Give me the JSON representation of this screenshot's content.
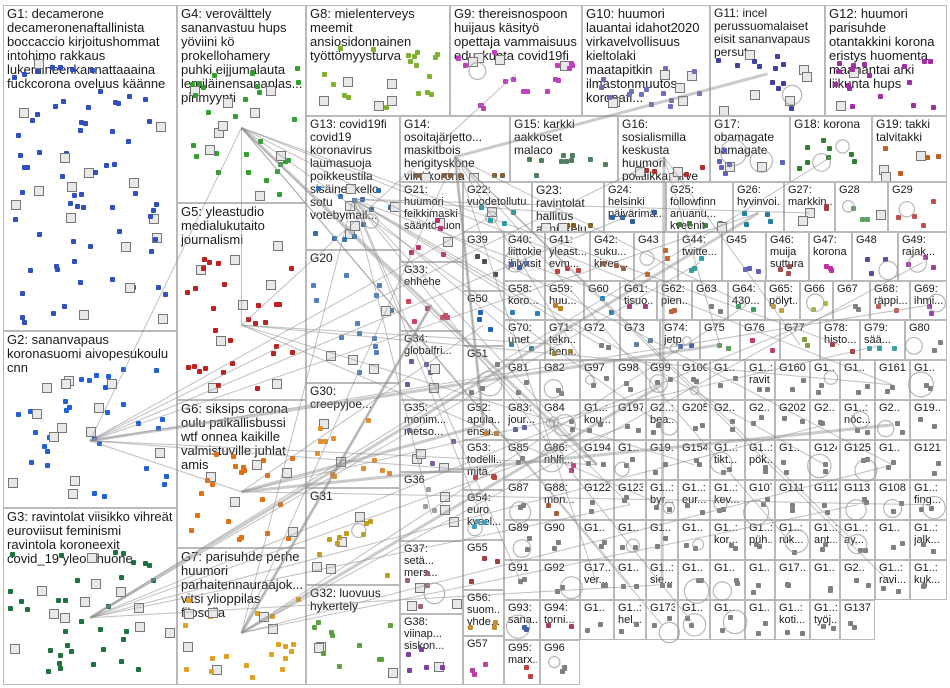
{
  "groups": [
    {
      "id": "G1",
      "label": "decamerone\ndecameronenaftallinista\nboccaccio kirjoitushommat\nintohimo rakkaus\nlukemineenkannattaaaina\nfuckcorona oveluus käänne",
      "color": "#3050c0"
    },
    {
      "id": "G2",
      "label": "sananvapaus\nkoronasuomi aivopesukoulu\ncnn",
      "color": "#2060d8"
    },
    {
      "id": "G3",
      "label": "ravintolat viisikko vihreät\neuroviisut feminismi\nravintola koroneexit\ncovid_19 yleolohuone",
      "color": "#207040"
    },
    {
      "id": "G4",
      "label": "verovälttely\nsananvastuu hups\nyöviini kö\nprokellohamery\npuhki eijjumalauta\nlemiläinensananlas...\npirimyynti",
      "color": "#30a030"
    },
    {
      "id": "G5",
      "label": "yleastudio\nmedialukutaito\njournalismi",
      "color": "#c02020"
    },
    {
      "id": "G6",
      "label": "siksips corona\noulu paikallisbussi\nwtf onnea kaikille\nvalmistuville juhlat\namis",
      "color": "#e07010"
    },
    {
      "id": "G7",
      "label": "parisuhde perhe\nhuumori\nparhaitennauraajok...\nvitsi ylioppilas\nfilosofia",
      "color": "#e0a020"
    },
    {
      "id": "G8",
      "label": "mielenterveys\nmeemit\nansiosidonnainen\ntyöttömyysturva",
      "color": "#80b030"
    },
    {
      "id": "G9",
      "label": "thereisnospoon\nhuijaus käsityö\nopettaja vammaisuus\neduskunta covid19fi",
      "color": "#c040c0"
    },
    {
      "id": "G10",
      "label": "huumori\nlauantai idahot2020\nvirkavelvollisuus\nkieltolaki\nmaatapitkin\nilmastonmuutos\nkoronafi...",
      "color": "#7070c0"
    },
    {
      "id": "G11",
      "label": "incel\nperussuomalaiset\neisit sananvapaus\npersut",
      "color": "#4040a0"
    },
    {
      "id": "G12",
      "label": "huumori\nparisuhde\notantakkini korona\neristys huomenta\nmaanantai arki\nliikunta hups",
      "color": "#a030a0"
    },
    {
      "id": "G13",
      "label": "covid19fi\ncovid19\nkoronavirus\nlaumasuoja\npoikkeustila\nsisäinenkello\nsotu\nvotebymail...",
      "color": "#3070b0"
    },
    {
      "id": "G14",
      "label": "osoitajärjetto...\nmaskitbois\nhengityskone\nviini korona\noikeinkirjoitus\nmokat huumori\ncovid19 koulu",
      "color": "#806040"
    },
    {
      "id": "G15",
      "label": "karkki\naakkoset\nmalaco",
      "color": "#508060"
    },
    {
      "id": "G16",
      "label": "sosialismilla\nkeskusta\nhuumori\npolitiikka turve\nhallitus...",
      "color": "#b03030"
    },
    {
      "id": "G17",
      "label": "obamagate\nbamagate",
      "color": "#6060c0"
    },
    {
      "id": "G18",
      "label": "korona",
      "color": "#308030"
    },
    {
      "id": "G19",
      "label": "takki\ntalvitakki",
      "color": "#c06020"
    },
    {
      "id": "G20",
      "label": "",
      "color": "#5080c0"
    },
    {
      "id": "G21",
      "label": "huumori\nfeikkimaski\nsääntösuomi",
      "color": "#c03070"
    },
    {
      "id": "G22",
      "label": "vuodetollutu...",
      "color": "#20a0a0"
    },
    {
      "id": "G23",
      "label": "ravintolat\nhallitus\nanniskelu\naukiolo...",
      "color": "#806020"
    },
    {
      "id": "G24",
      "label": "helsinki\npäivärimä...",
      "color": "#3060a0"
    },
    {
      "id": "G25",
      "label": "followfinn\nanuanu...\nkveenit",
      "color": "#408040"
    },
    {
      "id": "G26",
      "label": "hyvinvoi...",
      "color": "#2080a0"
    },
    {
      "id": "G27",
      "label": "markkin...",
      "color": "#a04040"
    },
    {
      "id": "G28",
      "label": "",
      "color": "#60a060"
    },
    {
      "id": "G29",
      "label": "",
      "color": "#c05050"
    },
    {
      "id": "G30",
      "label": "creepyjoe...",
      "color": "#e09030"
    },
    {
      "id": "G31",
      "label": "",
      "color": "#c0a020"
    },
    {
      "id": "G32",
      "label": "luovuus\nhykertely",
      "color": "#60a040"
    },
    {
      "id": "G33",
      "label": "ehhehe",
      "color": "#d04060"
    },
    {
      "id": "G34",
      "label": "globalfri...",
      "color": "#6060a0"
    },
    {
      "id": "G35",
      "label": "monim...\nmetso...",
      "color": "#8060a0"
    },
    {
      "id": "G36",
      "label": "",
      "color": "#a0a0a0"
    },
    {
      "id": "G37",
      "label": "setä...\nmers...",
      "color": "#a06080"
    },
    {
      "id": "G38",
      "label": "viinap...\nsiskon...",
      "color": "#8040a0"
    },
    {
      "id": "G39",
      "label": "",
      "color": "#505050"
    },
    {
      "id": "G40",
      "label": "liittokie...\njhlyksit...",
      "color": "#4060a0"
    },
    {
      "id": "G41",
      "label": "yleast...\nevm...",
      "color": "#c04040"
    },
    {
      "id": "G42",
      "label": "suku...\nkives...",
      "color": "#a06040"
    },
    {
      "id": "G43",
      "label": "",
      "color": "#d06020"
    },
    {
      "id": "G44",
      "label": "twitte...",
      "color": "#30a0a0"
    },
    {
      "id": "G45",
      "label": "",
      "color": "#6060c0"
    },
    {
      "id": "G46",
      "label": "muija\nsuttura",
      "color": "#a05050"
    },
    {
      "id": "G47",
      "label": "korona",
      "color": "#c030a0"
    },
    {
      "id": "G48",
      "label": "",
      "color": "#5050a0"
    },
    {
      "id": "G49",
      "label": "rajak...",
      "color": "#a040a0"
    },
    {
      "id": "G50",
      "label": "",
      "color": "#2060c0"
    },
    {
      "id": "G51",
      "label": "",
      "color": "#808080"
    },
    {
      "id": "G52",
      "label": "apula...\nensu...",
      "color": "#c08040"
    },
    {
      "id": "G53",
      "label": "todelli...\nmitä...",
      "color": "#c04040"
    },
    {
      "id": "G54",
      "label": "euro\nkysel...",
      "color": "#40a0c0"
    },
    {
      "id": "G55",
      "label": "",
      "color": "#a04040"
    },
    {
      "id": "G56",
      "label": "suom...\nyhde...",
      "color": "#c09030"
    },
    {
      "id": "G57",
      "label": "",
      "color": "#c040a0"
    },
    {
      "id": "G58",
      "label": "koro...",
      "color": "#3080c0"
    },
    {
      "id": "G59",
      "label": "huu...",
      "color": "#c08020"
    },
    {
      "id": "G60",
      "label": "",
      "color": "#2080c0"
    },
    {
      "id": "G61",
      "label": "tisuo...",
      "color": "#a04080"
    },
    {
      "id": "G62",
      "label": "pien...",
      "color": "#c06040"
    },
    {
      "id": "G63",
      "label": "",
      "color": "#808080"
    },
    {
      "id": "G64",
      "label": "430...",
      "color": "#40a060"
    },
    {
      "id": "G65",
      "label": "pölyt...",
      "color": "#c0a040"
    },
    {
      "id": "G66",
      "label": "",
      "color": "#a0c040"
    },
    {
      "id": "G67",
      "label": "",
      "color": "#808080"
    },
    {
      "id": "G68",
      "label": "räppi...",
      "color": "#c06060"
    },
    {
      "id": "G69",
      "label": "ihmi...",
      "color": "#a040c0"
    },
    {
      "id": "G70",
      "label": "unet",
      "color": "#4080a0"
    },
    {
      "id": "G71",
      "label": "tekn...\nhen...",
      "color": "#a08040"
    },
    {
      "id": "G72",
      "label": "",
      "color": "#808080"
    },
    {
      "id": "G73",
      "label": "",
      "color": "#6080a0"
    },
    {
      "id": "G74",
      "label": "jetp",
      "color": "#4060c0"
    },
    {
      "id": "G75",
      "label": "",
      "color": "#60a060"
    },
    {
      "id": "G76",
      "label": "",
      "color": "#c04060"
    },
    {
      "id": "G77",
      "label": "",
      "color": "#80a040"
    },
    {
      "id": "G78",
      "label": "histo...",
      "color": "#a04040"
    },
    {
      "id": "G79",
      "label": "sää...",
      "color": "#40a0a0"
    },
    {
      "id": "G80",
      "label": "",
      "color": "#808080"
    },
    {
      "id": "G81",
      "label": "",
      "color": "#808080"
    },
    {
      "id": "G82",
      "label": "",
      "color": "#808080"
    },
    {
      "id": "G83",
      "label": "jour...",
      "color": "#6060a0"
    },
    {
      "id": "G84",
      "label": "",
      "color": "#808080"
    },
    {
      "id": "G85",
      "label": "",
      "color": "#808080"
    },
    {
      "id": "G86",
      "label": "nhlfi...",
      "color": "#c04080"
    },
    {
      "id": "G87",
      "label": "",
      "color": "#808080"
    },
    {
      "id": "G88",
      "label": "mon...",
      "color": "#a06040"
    },
    {
      "id": "G89",
      "label": "",
      "color": "#808080"
    },
    {
      "id": "G90",
      "label": "",
      "color": "#808080"
    },
    {
      "id": "G91",
      "label": "",
      "color": "#808080"
    },
    {
      "id": "G92",
      "label": "",
      "color": "#808080"
    },
    {
      "id": "G93",
      "label": "sana...",
      "color": "#4060a0"
    },
    {
      "id": "G94",
      "label": "torni...",
      "color": "#a04060"
    },
    {
      "id": "G95",
      "label": "marx...",
      "color": "#c04040"
    },
    {
      "id": "G96",
      "label": "",
      "color": "#808080"
    },
    {
      "id": "G97",
      "label": "",
      "color": "#808080"
    },
    {
      "id": "G98",
      "label": "",
      "color": "#808080"
    },
    {
      "id": "G99",
      "label": "",
      "color": "#808080"
    },
    {
      "id": "G100",
      "label": "",
      "color": "#808080"
    },
    {
      "id": "G1..",
      "label": "",
      "color": "#808080"
    },
    {
      "id": "G1..",
      "label": "ravit",
      "color": "#808080"
    },
    {
      "id": "G160",
      "label": "",
      "color": "#808080"
    },
    {
      "id": "G1..",
      "label": "",
      "color": "#808080"
    },
    {
      "id": "G1..",
      "label": "",
      "color": "#808080"
    },
    {
      "id": "G161",
      "label": "",
      "color": "#808080"
    },
    {
      "id": "G1..",
      "label": "",
      "color": "#808080"
    },
    {
      "id": "G1..",
      "label": "kou...",
      "color": "#808080"
    },
    {
      "id": "G197",
      "label": "",
      "color": "#808080"
    },
    {
      "id": "G2..",
      "label": "bea...",
      "color": "#808080"
    },
    {
      "id": "G205",
      "label": "",
      "color": "#808080"
    },
    {
      "id": "G2..",
      "label": "",
      "color": "#808080"
    },
    {
      "id": "G2..",
      "label": "",
      "color": "#808080"
    },
    {
      "id": "G202",
      "label": "",
      "color": "#808080"
    },
    {
      "id": "G2..",
      "label": "",
      "color": "#808080"
    },
    {
      "id": "G1..",
      "label": "nöc...",
      "color": "#808080"
    },
    {
      "id": "G2..",
      "label": "",
      "color": "#808080"
    },
    {
      "id": "G19..",
      "label": "",
      "color": "#808080"
    },
    {
      "id": "G194",
      "label": "",
      "color": "#808080"
    },
    {
      "id": "G1..",
      "label": "",
      "color": "#808080"
    },
    {
      "id": "G19..",
      "label": "",
      "color": "#808080"
    },
    {
      "id": "G154",
      "label": "",
      "color": "#808080"
    },
    {
      "id": "G1..",
      "label": "tikt...",
      "color": "#808080"
    },
    {
      "id": "G1..",
      "label": "pök...",
      "color": "#808080"
    },
    {
      "id": "G1..",
      "label": "",
      "color": "#808080"
    },
    {
      "id": "G124",
      "label": "",
      "color": "#808080"
    },
    {
      "id": "G125",
      "label": "",
      "color": "#808080"
    },
    {
      "id": "G1..",
      "label": "",
      "color": "#808080"
    },
    {
      "id": "G121",
      "label": "",
      "color": "#808080"
    },
    {
      "id": "G122",
      "label": "",
      "color": "#808080"
    },
    {
      "id": "G123",
      "label": "",
      "color": "#808080"
    },
    {
      "id": "G1..",
      "label": "byr...",
      "color": "#808080"
    },
    {
      "id": "G1..",
      "label": "eur...",
      "color": "#808080"
    },
    {
      "id": "G1..",
      "label": "kev...",
      "color": "#808080"
    },
    {
      "id": "G107",
      "label": "",
      "color": "#808080"
    },
    {
      "id": "G111",
      "label": "",
      "color": "#808080"
    },
    {
      "id": "G112",
      "label": "",
      "color": "#808080"
    },
    {
      "id": "G113",
      "label": "",
      "color": "#808080"
    },
    {
      "id": "G108",
      "label": "",
      "color": "#808080"
    },
    {
      "id": "G1..",
      "label": "fing...",
      "color": "#808080"
    },
    {
      "id": "G1..",
      "label": "",
      "color": "#808080"
    },
    {
      "id": "G1..",
      "label": "",
      "color": "#808080"
    },
    {
      "id": "G1..",
      "label": "",
      "color": "#808080"
    },
    {
      "id": "G1..",
      "label": "",
      "color": "#808080"
    },
    {
      "id": "G1..",
      "label": "kor...",
      "color": "#808080"
    },
    {
      "id": "G1..",
      "label": "püh...",
      "color": "#808080"
    },
    {
      "id": "G1..",
      "label": "ruk...",
      "color": "#808080"
    },
    {
      "id": "G1..",
      "label": "ant...",
      "color": "#808080"
    },
    {
      "id": "G1..",
      "label": "ay...",
      "color": "#808080"
    },
    {
      "id": "G1..",
      "label": "",
      "color": "#808080"
    },
    {
      "id": "G1..",
      "label": "jalk...",
      "color": "#808080"
    },
    {
      "id": "G17..",
      "label": "ver...",
      "color": "#808080"
    },
    {
      "id": "G1..",
      "label": "",
      "color": "#808080"
    },
    {
      "id": "G1..",
      "label": "sie...",
      "color": "#808080"
    },
    {
      "id": "G1..",
      "label": "",
      "color": "#808080"
    },
    {
      "id": "G1..",
      "label": "",
      "color": "#808080"
    },
    {
      "id": "G1..",
      "label": "",
      "color": "#808080"
    },
    {
      "id": "G17..",
      "label": "",
      "color": "#808080"
    },
    {
      "id": "G1..",
      "label": "",
      "color": "#808080"
    },
    {
      "id": "G2..",
      "label": "",
      "color": "#808080"
    },
    {
      "id": "G1..",
      "label": "ravi...",
      "color": "#808080"
    },
    {
      "id": "G1..",
      "label": "kuk...",
      "color": "#808080"
    },
    {
      "id": "G1..",
      "label": "",
      "color": "#808080"
    },
    {
      "id": "G1..",
      "label": "hel...",
      "color": "#808080"
    },
    {
      "id": "G173",
      "label": "",
      "color": "#808080"
    },
    {
      "id": "G1..",
      "label": "",
      "color": "#808080"
    },
    {
      "id": "G1..",
      "label": "",
      "color": "#808080"
    },
    {
      "id": "G1..",
      "label": "",
      "color": "#808080"
    },
    {
      "id": "G1..",
      "label": "koti...",
      "color": "#808080"
    },
    {
      "id": "G1..",
      "label": "työj...",
      "color": "#808080"
    },
    {
      "id": "G137",
      "label": "",
      "color": "#808080"
    }
  ]
}
